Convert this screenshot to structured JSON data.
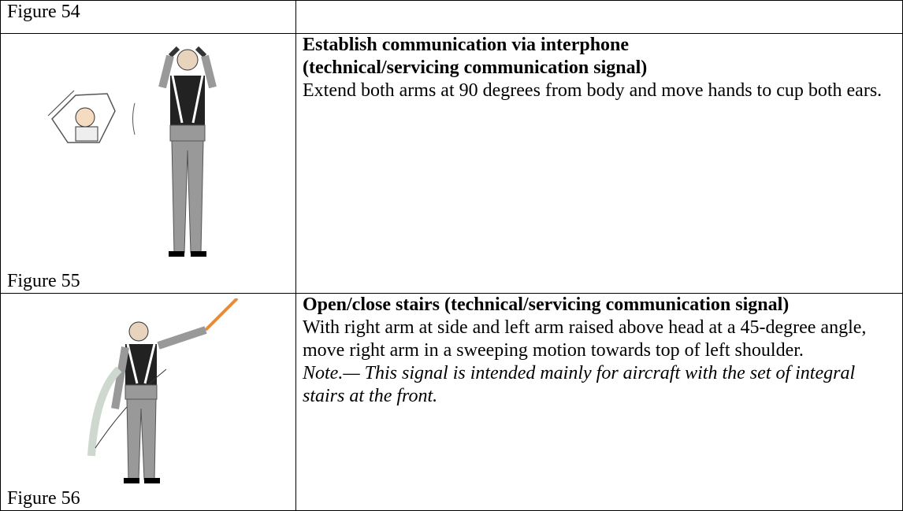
{
  "rows": [
    {
      "figure": "Figure 54"
    },
    {
      "figure": "Figure 55",
      "title_lines": [
        "Establish communication via interphone",
        "(technical/servicing communication signal)"
      ],
      "text": "Extend both arms at 90 degrees from body and move hands to cup both ears."
    },
    {
      "figure": "Figure 56",
      "title": "Open/close stairs (technical/servicing communication signal)",
      "text": "With right arm at side and left arm raised above head at a 45-degree angle, move right arm in a sweeping motion towards top of left shoulder.",
      "note": "Note.— This signal is intended mainly for aircraft with the set of integral stairs at the front."
    }
  ]
}
